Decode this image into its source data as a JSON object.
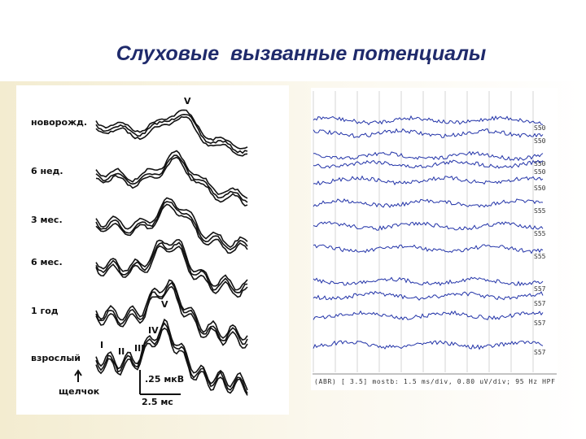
{
  "title": "Слуховые  вызванные потенциалы",
  "left_figure": {
    "peak_label": "V",
    "age_labels": [
      "новорожд.",
      "6 нед.",
      "3 мес.",
      "6 мес.",
      "1 год",
      "взрослый"
    ],
    "peak_numerals": [
      "I",
      "II",
      "III",
      "IV",
      "V"
    ],
    "stimulus_label": "щелчок",
    "amplitude_scale": ".25  мкВ",
    "time_scale": "2.5 мс"
  },
  "right_figure": {
    "trace_labels": [
      "S50",
      "S50",
      "S50",
      "S50",
      "S50",
      "S55",
      "S55",
      "S55",
      "S57",
      "S57",
      "S57",
      "S57"
    ],
    "footer": "(ABR) [ 3.5] mostb: 1.5 ms/div, 0.80 uV/div; 95 Hz HPF"
  }
}
